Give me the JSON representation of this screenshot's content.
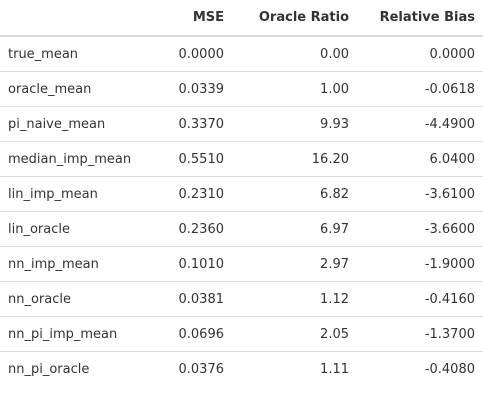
{
  "table": {
    "headers": [
      "",
      "MSE",
      "Oracle Ratio",
      "Relative Bias"
    ],
    "rows": [
      {
        "name": "true_mean",
        "mse": "0.0000",
        "ratio": "0.00",
        "bias": "0.0000"
      },
      {
        "name": "oracle_mean",
        "mse": "0.0339",
        "ratio": "1.00",
        "bias": "-0.0618"
      },
      {
        "name": "pi_naive_mean",
        "mse": "0.3370",
        "ratio": "9.93",
        "bias": "-4.4900"
      },
      {
        "name": "median_imp_mean",
        "mse": "0.5510",
        "ratio": "16.20",
        "bias": "6.0400"
      },
      {
        "name": "lin_imp_mean",
        "mse": "0.2310",
        "ratio": "6.82",
        "bias": "-3.6100"
      },
      {
        "name": "lin_oracle",
        "mse": "0.2360",
        "ratio": "6.97",
        "bias": "-3.6600"
      },
      {
        "name": "nn_imp_mean",
        "mse": "0.1010",
        "ratio": "2.97",
        "bias": "-1.9000"
      },
      {
        "name": "nn_oracle",
        "mse": "0.0381",
        "ratio": "1.12",
        "bias": "-0.4160"
      },
      {
        "name": "nn_pi_imp_mean",
        "mse": "0.0696",
        "ratio": "2.05",
        "bias": "-1.3700"
      },
      {
        "name": "nn_pi_oracle",
        "mse": "0.0376",
        "ratio": "1.11",
        "bias": "-0.4080"
      }
    ]
  }
}
